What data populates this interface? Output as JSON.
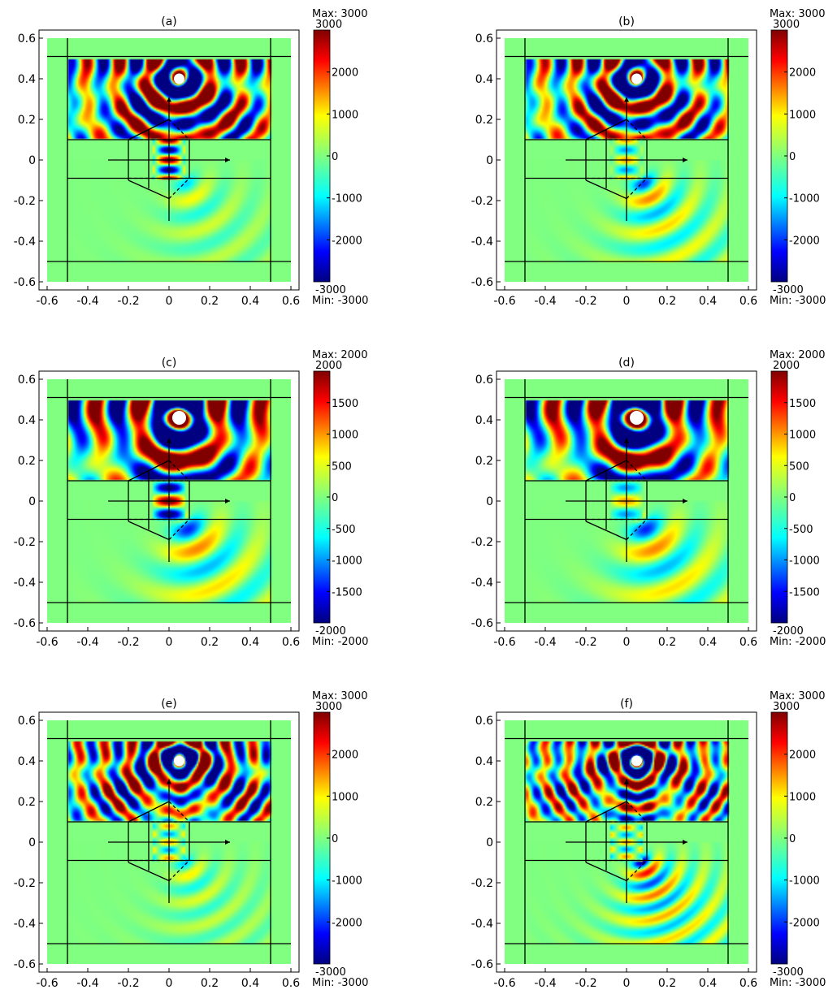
{
  "chart_data": [
    {
      "type": "heatmap",
      "title": "(a)",
      "x_ticks": [
        "-0.6",
        "-0.4",
        "-0.2",
        "0",
        "0.2",
        "0.4",
        "0.6"
      ],
      "y_ticks": [
        "0.6",
        "0.4",
        "0.2",
        "0",
        "-0.2",
        "-0.4",
        "-0.6"
      ],
      "xlim": [
        -0.6,
        0.6
      ],
      "ylim": [
        -0.6,
        0.6
      ],
      "colorbar": {
        "max_label": "Max: 3000",
        "min_label": "Min: -3000",
        "top": "3000",
        "bottom": "-3000",
        "ticks": [
          "2000",
          "1000",
          "0",
          "-1000",
          "-2000"
        ],
        "range": [
          -3000,
          3000
        ]
      },
      "field": {
        "source": [
          0.05,
          0.4
        ],
        "amplitude": 1.0,
        "wavenumber": 40,
        "shadow": 0.15,
        "prism_hot": true
      }
    },
    {
      "type": "heatmap",
      "title": "(b)",
      "x_ticks": [
        "-0.6",
        "-0.4",
        "-0.2",
        "0",
        "0.2",
        "0.4",
        "0.6"
      ],
      "y_ticks": [
        "0.6",
        "0.4",
        "0.2",
        "0",
        "-0.2",
        "-0.4",
        "-0.6"
      ],
      "xlim": [
        -0.6,
        0.6
      ],
      "ylim": [
        -0.6,
        0.6
      ],
      "colorbar": {
        "max_label": "Max: 3000",
        "min_label": "Min: -3000",
        "top": "3000",
        "bottom": "-3000",
        "ticks": [
          "2000",
          "1000",
          "0",
          "-1000",
          "-2000"
        ],
        "range": [
          -3000,
          3000
        ]
      },
      "field": {
        "source": [
          0.05,
          0.4
        ],
        "amplitude": 0.9,
        "wavenumber": 40,
        "shadow": 0.3,
        "prism_hot": false
      }
    },
    {
      "type": "heatmap",
      "title": "(c)",
      "x_ticks": [
        "-0.6",
        "-0.4",
        "-0.2",
        "0",
        "0.2",
        "0.4",
        "0.6"
      ],
      "y_ticks": [
        "0.6",
        "0.4",
        "0.2",
        "0",
        "-0.2",
        "-0.4",
        "-0.6"
      ],
      "xlim": [
        -0.6,
        0.6
      ],
      "ylim": [
        -0.6,
        0.6
      ],
      "colorbar": {
        "max_label": "Max: 2000",
        "min_label": "Min: -2000",
        "top": "2000",
        "bottom": "-2000",
        "ticks": [
          "1500",
          "1000",
          "500",
          "0",
          "-500",
          "-1000",
          "-1500"
        ],
        "range": [
          -2000,
          2000
        ]
      },
      "field": {
        "source": [
          0.05,
          0.41
        ],
        "amplitude": 1.2,
        "wavenumber": 30,
        "shadow": 0.35,
        "prism_hot": true
      }
    },
    {
      "type": "heatmap",
      "title": "(d)",
      "x_ticks": [
        "-0.6",
        "-0.4",
        "-0.2",
        "0",
        "0.2",
        "0.4",
        "0.6"
      ],
      "y_ticks": [
        "0.6",
        "0.4",
        "0.2",
        "0",
        "-0.2",
        "-0.4",
        "-0.6"
      ],
      "xlim": [
        -0.6,
        0.6
      ],
      "ylim": [
        -0.6,
        0.6
      ],
      "colorbar": {
        "max_label": "Max: 2000",
        "min_label": "Min: -2000",
        "top": "2000",
        "bottom": "-2000",
        "ticks": [
          "1500",
          "1000",
          "500",
          "0",
          "-500",
          "-1000",
          "-1500"
        ],
        "range": [
          -2000,
          2000
        ]
      },
      "field": {
        "source": [
          0.05,
          0.41
        ],
        "amplitude": 1.1,
        "wavenumber": 30,
        "shadow": 0.35,
        "prism_hot": false
      }
    },
    {
      "type": "heatmap",
      "title": "(e)",
      "x_ticks": [
        "-0.6",
        "-0.4",
        "-0.2",
        "0",
        "0.2",
        "0.4",
        "0.6"
      ],
      "y_ticks": [
        "0.6",
        "0.4",
        "0.2",
        "0",
        "-0.2",
        "-0.4",
        "-0.6"
      ],
      "xlim": [
        -0.6,
        0.6
      ],
      "ylim": [
        -0.6,
        0.6
      ],
      "colorbar": {
        "max_label": "Max: 3000",
        "min_label": "Min: -3000",
        "top": "3000",
        "bottom": "-3000",
        "ticks": [
          "2000",
          "1000",
          "0",
          "-1000",
          "-2000"
        ],
        "range": [
          -3000,
          3000
        ]
      },
      "field": {
        "source": [
          0.05,
          0.4
        ],
        "amplitude": 1.0,
        "wavenumber": 50,
        "shadow": 0.15,
        "prism_hot": false
      }
    },
    {
      "type": "heatmap",
      "title": "(f)",
      "x_ticks": [
        "-0.6",
        "-0.4",
        "-0.2",
        "0",
        "0.2",
        "0.4",
        "0.6"
      ],
      "y_ticks": [
        "0.6",
        "0.4",
        "0.2",
        "0",
        "-0.2",
        "-0.4",
        "-0.6"
      ],
      "xlim": [
        -0.6,
        0.6
      ],
      "ylim": [
        -0.6,
        0.6
      ],
      "colorbar": {
        "max_label": "Max: 3000",
        "min_label": "Min: -3000",
        "top": "3000",
        "bottom": "-3000",
        "ticks": [
          "2000",
          "1000",
          "0",
          "-1000",
          "-2000"
        ],
        "range": [
          -3000,
          3000
        ]
      },
      "field": {
        "source": [
          0.05,
          0.4
        ],
        "amplitude": 0.9,
        "wavenumber": 55,
        "shadow": 0.4,
        "prism_hot": false
      }
    }
  ]
}
